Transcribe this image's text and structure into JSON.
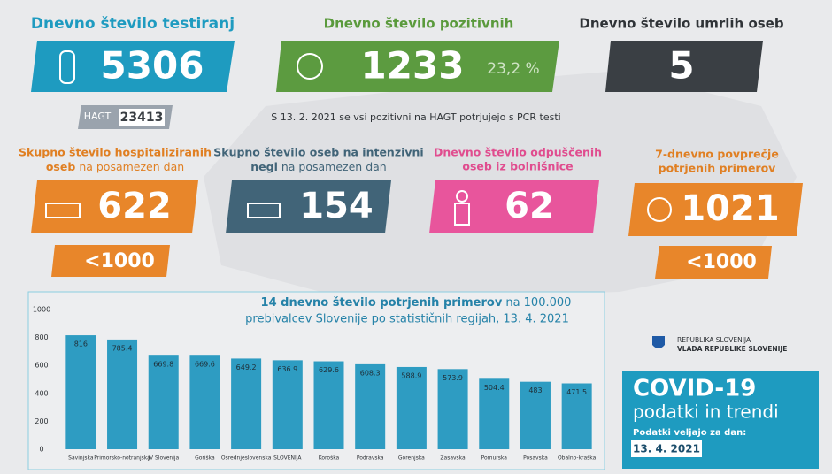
{
  "tests": {
    "title": "Dnevno število testiranj",
    "value": 5306,
    "hagt_label": "HAGT",
    "hagt_value": 23413
  },
  "positive": {
    "title": "Dnevno število pozitivnih",
    "value": 1233,
    "share": "23,2 %"
  },
  "deaths": {
    "title": "Dnevno število umrlih oseb",
    "value": 5
  },
  "note": "S 13. 2. 2021 se vsi pozitivni na HAGT potrjujejo s PCR testi",
  "hospitalized": {
    "title": [
      "Skupno število hospitaliziranih",
      "oseb"
    ],
    "title_suffix": "na posamezen dan",
    "value": 622,
    "threshold": "<1000"
  },
  "icu": {
    "title": [
      "Skupno število oseb na intenzivni",
      "negi"
    ],
    "title_suffix": "na posamezen dan",
    "value": 154
  },
  "discharged": {
    "title": [
      "Dnevno število odpuščenih",
      "oseb iz bolnišnice"
    ],
    "value": 62
  },
  "average": {
    "title": [
      "7-dnevno povprečje",
      "potrjenih primerov"
    ],
    "value": 1021,
    "threshold": "<1000"
  },
  "logo": [
    "REPUBLIKA SLOVENIJA",
    "VLADA REPUBLIKE SLOVENIJE"
  ],
  "footer": {
    "title": "COVID-19",
    "subtitle": "podatki in trendi",
    "date_label": "Podatki veljajo za dan:",
    "date": "13. 4. 2021"
  },
  "chart_data": {
    "type": "bar",
    "title": "14 dnevno število potrjenih primerov",
    "title_suffix": "na 100.000",
    "title_line2": "prebivalcev Slovenije po statističnih regijah, 13. 4. 2021",
    "categories": [
      "Savinjska",
      "Primorsko-notranjska",
      "JV Slovenija",
      "Goriška",
      "Osrednjeslovenska",
      "SLOVENIJA",
      "Koroška",
      "Podravska",
      "Gorenjska",
      "Zasavska",
      "Pomurska",
      "Posavska",
      "Obalno-kraška"
    ],
    "values": [
      816,
      785.4,
      669.8,
      669.6,
      649.2,
      636.9,
      629.6,
      608.3,
      588.9,
      573.9,
      504.4,
      483,
      471.5
    ],
    "color": "#2e9cc2",
    "ylim": [
      0,
      1000
    ],
    "yticks": [
      0,
      200,
      400,
      600,
      800,
      1000
    ]
  }
}
